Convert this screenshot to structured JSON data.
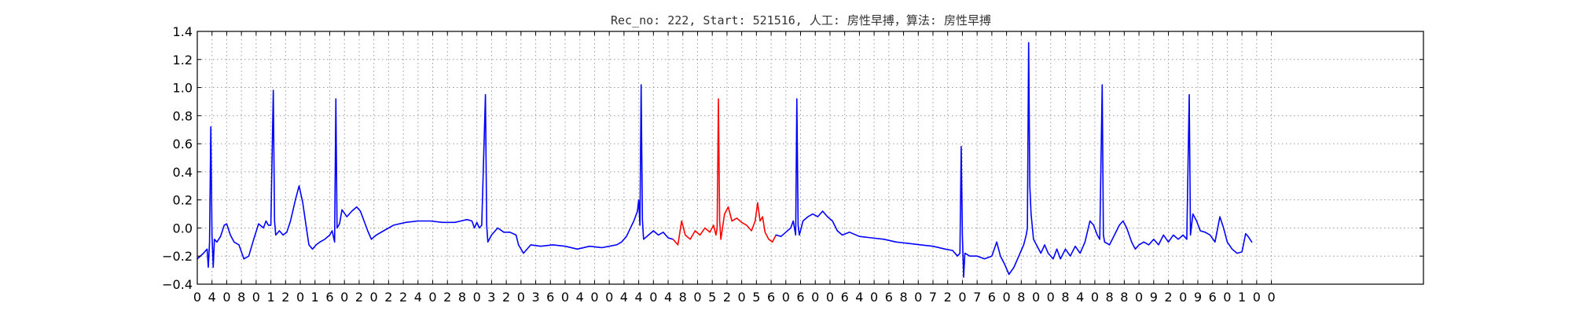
{
  "chart_data": {
    "type": "line",
    "title": "Rec_no: 222, Start: 521516, 人工: 房性早搏，算法: 房性早搏",
    "xlabel": "",
    "ylabel": "",
    "xlim": [
      0,
      1000
    ],
    "ylim": [
      -0.4,
      1.4
    ],
    "grid": true,
    "colors": {
      "normal": "#0000ff",
      "highlight": "#ff0000"
    },
    "yticks": [
      -0.4,
      -0.2,
      0.0,
      0.2,
      0.4,
      0.6,
      0.8,
      1.0,
      1.2,
      1.4
    ],
    "ytick_labels": [
      "−0.4",
      "−0.2",
      "0.0",
      "0.2",
      "0.4",
      "0.6",
      "0.8",
      "1.0",
      "1.2",
      "1.4"
    ],
    "xticks": [
      0,
      12,
      24,
      36,
      48,
      60,
      72,
      84,
      96,
      108,
      120,
      132,
      144,
      156,
      168,
      180,
      192,
      204,
      216,
      228,
      240,
      252,
      264,
      276,
      288,
      300,
      312,
      324,
      336,
      348,
      360,
      372,
      384,
      396,
      408,
      420,
      432,
      444,
      456,
      468,
      480,
      492,
      504,
      516,
      528,
      540,
      552,
      564,
      576,
      588,
      600,
      612,
      624,
      636,
      648,
      660,
      672,
      684,
      696,
      708,
      720,
      732,
      744,
      756,
      768,
      780,
      792,
      804,
      816,
      828,
      840,
      852,
      864,
      876
    ],
    "xtick_labels": [
      "0",
      "4",
      "0",
      "8",
      "0",
      "1",
      "2",
      "0",
      "1",
      "6",
      "0",
      "2",
      "0",
      "2",
      "2",
      "4",
      "0",
      "2",
      "8",
      "0",
      "3",
      "2",
      "0",
      "3",
      "6",
      "0",
      "4",
      "0",
      "0",
      "4",
      "4",
      "0",
      "4",
      "8",
      "0",
      "5",
      "2",
      "0",
      "5",
      "6",
      "0",
      "6",
      "0",
      "0",
      "6",
      "4",
      "0",
      "6",
      "8",
      "0",
      "7",
      "2",
      "0",
      "7",
      "6",
      "0",
      "8",
      "0",
      "0",
      "8",
      "4",
      "0",
      "8",
      "8",
      "0",
      "9",
      "2",
      "0",
      "9",
      "6",
      "0",
      "1",
      "0",
      "0"
    ],
    "series": [
      {
        "color": "#0000ff",
        "points": [
          [
            0,
            -0.22
          ],
          [
            5,
            -0.18
          ],
          [
            8,
            -0.15
          ],
          [
            9,
            -0.28
          ],
          [
            10,
            -0.1
          ],
          [
            11,
            0.72
          ],
          [
            12,
            -0.05
          ],
          [
            13,
            -0.28
          ],
          [
            14,
            -0.08
          ],
          [
            16,
            -0.1
          ],
          [
            19,
            -0.06
          ],
          [
            22,
            0.02
          ],
          [
            24,
            0.03
          ],
          [
            27,
            -0.05
          ],
          [
            30,
            -0.1
          ],
          [
            34,
            -0.12
          ],
          [
            38,
            -0.22
          ],
          [
            42,
            -0.2
          ],
          [
            46,
            -0.08
          ],
          [
            50,
            0.03
          ],
          [
            54,
            0.0
          ],
          [
            56,
            0.05
          ],
          [
            58,
            0.02
          ],
          [
            60,
            0.02
          ],
          [
            62,
            0.98
          ],
          [
            63,
            0.05
          ],
          [
            64,
            -0.05
          ],
          [
            67,
            -0.02
          ],
          [
            70,
            -0.05
          ],
          [
            73,
            -0.03
          ],
          [
            76,
            0.05
          ],
          [
            80,
            0.2
          ],
          [
            83,
            0.3
          ],
          [
            86,
            0.18
          ],
          [
            89,
            0.0
          ],
          [
            91,
            -0.12
          ],
          [
            94,
            -0.15
          ],
          [
            97,
            -0.12
          ],
          [
            100,
            -0.1
          ],
          [
            104,
            -0.08
          ],
          [
            108,
            -0.05
          ],
          [
            110,
            -0.02
          ],
          [
            112,
            -0.1
          ],
          [
            113,
            0.92
          ],
          [
            114,
            0.0
          ],
          [
            116,
            0.03
          ],
          [
            118,
            0.13
          ],
          [
            122,
            0.08
          ],
          [
            126,
            0.12
          ],
          [
            130,
            0.15
          ],
          [
            133,
            0.12
          ],
          [
            136,
            0.05
          ],
          [
            139,
            -0.02
          ],
          [
            142,
            -0.08
          ],
          [
            146,
            -0.05
          ],
          [
            152,
            -0.02
          ],
          [
            160,
            0.02
          ],
          [
            170,
            0.04
          ],
          [
            180,
            0.05
          ],
          [
            190,
            0.05
          ],
          [
            200,
            0.04
          ],
          [
            210,
            0.04
          ],
          [
            215,
            0.05
          ],
          [
            220,
            0.06
          ],
          [
            224,
            0.05
          ],
          [
            226,
            0.0
          ],
          [
            228,
            0.04
          ],
          [
            230,
            0.0
          ],
          [
            232,
            0.02
          ],
          [
            235,
            0.95
          ],
          [
            236,
            0.02
          ],
          [
            237,
            -0.1
          ],
          [
            240,
            -0.05
          ],
          [
            245,
            0.0
          ],
          [
            250,
            -0.03
          ],
          [
            255,
            -0.03
          ],
          [
            260,
            -0.05
          ],
          [
            262,
            -0.12
          ],
          [
            266,
            -0.18
          ],
          [
            272,
            -0.12
          ],
          [
            280,
            -0.13
          ],
          [
            290,
            -0.12
          ],
          [
            300,
            -0.13
          ],
          [
            310,
            -0.15
          ],
          [
            320,
            -0.13
          ],
          [
            330,
            -0.14
          ],
          [
            336,
            -0.13
          ],
          [
            342,
            -0.12
          ],
          [
            346,
            -0.1
          ],
          [
            350,
            -0.06
          ],
          [
            356,
            0.05
          ],
          [
            359,
            0.12
          ],
          [
            360,
            0.2
          ],
          [
            361,
            0.02
          ],
          [
            362,
            1.02
          ],
          [
            363,
            0.06
          ],
          [
            364,
            -0.08
          ],
          [
            368,
            -0.05
          ],
          [
            372,
            -0.02
          ],
          [
            376,
            -0.05
          ],
          [
            380,
            -0.03
          ],
          [
            384,
            -0.07
          ],
          [
            388,
            -0.08
          ]
        ]
      },
      {
        "color": "#ff0000",
        "points": [
          [
            388,
            -0.08
          ],
          [
            392,
            -0.12
          ],
          [
            395,
            0.05
          ],
          [
            398,
            -0.05
          ],
          [
            402,
            -0.08
          ],
          [
            406,
            -0.02
          ],
          [
            410,
            -0.05
          ],
          [
            414,
            0.0
          ],
          [
            418,
            -0.03
          ],
          [
            421,
            0.02
          ],
          [
            423,
            -0.05
          ],
          [
            424,
            0.0
          ],
          [
            425,
            0.92
          ],
          [
            426,
            0.05
          ],
          [
            427,
            -0.08
          ],
          [
            430,
            0.1
          ],
          [
            433,
            0.15
          ],
          [
            436,
            0.05
          ],
          [
            440,
            0.07
          ],
          [
            444,
            0.04
          ],
          [
            448,
            0.02
          ],
          [
            452,
            -0.02
          ],
          [
            455,
            0.05
          ],
          [
            457,
            0.18
          ],
          [
            459,
            0.05
          ],
          [
            461,
            0.08
          ],
          [
            463,
            -0.03
          ],
          [
            466,
            -0.08
          ],
          [
            469,
            -0.1
          ],
          [
            472,
            -0.05
          ]
        ]
      },
      {
        "color": "#0000ff",
        "points": [
          [
            472,
            -0.05
          ],
          [
            476,
            -0.06
          ],
          [
            480,
            -0.03
          ],
          [
            484,
            0.0
          ],
          [
            486,
            0.05
          ],
          [
            488,
            -0.05
          ],
          [
            489,
            0.92
          ],
          [
            490,
            0.02
          ],
          [
            491,
            -0.05
          ],
          [
            494,
            0.05
          ],
          [
            498,
            0.08
          ],
          [
            502,
            0.1
          ],
          [
            506,
            0.08
          ],
          [
            510,
            0.12
          ],
          [
            514,
            0.08
          ],
          [
            518,
            0.05
          ],
          [
            522,
            -0.02
          ],
          [
            526,
            -0.05
          ],
          [
            532,
            -0.03
          ],
          [
            540,
            -0.06
          ],
          [
            550,
            -0.07
          ],
          [
            560,
            -0.08
          ],
          [
            570,
            -0.1
          ],
          [
            580,
            -0.11
          ],
          [
            590,
            -0.12
          ],
          [
            600,
            -0.13
          ],
          [
            610,
            -0.15
          ],
          [
            616,
            -0.16
          ],
          [
            620,
            -0.2
          ],
          [
            622,
            -0.18
          ],
          [
            623,
            0.58
          ],
          [
            624,
            -0.05
          ],
          [
            625,
            -0.35
          ],
          [
            626,
            -0.18
          ],
          [
            630,
            -0.2
          ],
          [
            636,
            -0.2
          ],
          [
            642,
            -0.22
          ],
          [
            648,
            -0.2
          ],
          [
            652,
            -0.1
          ],
          [
            655,
            -0.2
          ],
          [
            658,
            -0.25
          ],
          [
            662,
            -0.33
          ],
          [
            666,
            -0.28
          ],
          [
            670,
            -0.2
          ],
          [
            674,
            -0.12
          ],
          [
            676,
            -0.05
          ],
          [
            677,
            0.0
          ],
          [
            678,
            1.32
          ],
          [
            679,
            0.3
          ],
          [
            680,
            0.1
          ],
          [
            682,
            -0.08
          ],
          [
            685,
            -0.13
          ],
          [
            688,
            -0.18
          ],
          [
            691,
            -0.12
          ],
          [
            694,
            -0.18
          ],
          [
            698,
            -0.22
          ],
          [
            701,
            -0.15
          ],
          [
            704,
            -0.22
          ],
          [
            708,
            -0.15
          ],
          [
            712,
            -0.2
          ],
          [
            716,
            -0.13
          ],
          [
            720,
            -0.18
          ],
          [
            724,
            -0.1
          ],
          [
            728,
            0.05
          ],
          [
            731,
            0.02
          ],
          [
            734,
            -0.05
          ],
          [
            736,
            -0.08
          ],
          [
            738,
            1.02
          ],
          [
            739,
            -0.05
          ],
          [
            740,
            -0.1
          ],
          [
            744,
            -0.12
          ],
          [
            748,
            -0.05
          ],
          [
            752,
            0.02
          ],
          [
            755,
            0.05
          ],
          [
            758,
            0.0
          ],
          [
            762,
            -0.1
          ],
          [
            765,
            -0.15
          ],
          [
            768,
            -0.12
          ],
          [
            772,
            -0.1
          ],
          [
            776,
            -0.12
          ],
          [
            780,
            -0.08
          ],
          [
            784,
            -0.12
          ],
          [
            788,
            -0.05
          ],
          [
            792,
            -0.1
          ],
          [
            796,
            -0.05
          ],
          [
            800,
            -0.08
          ],
          [
            804,
            -0.05
          ],
          [
            807,
            -0.08
          ],
          [
            809,
            0.95
          ],
          [
            810,
            -0.05
          ],
          [
            812,
            0.1
          ],
          [
            815,
            0.05
          ],
          [
            818,
            -0.02
          ],
          [
            822,
            -0.03
          ],
          [
            826,
            -0.05
          ],
          [
            830,
            -0.1
          ],
          [
            834,
            0.08
          ],
          [
            837,
            0.0
          ],
          [
            840,
            -0.1
          ],
          [
            844,
            -0.15
          ],
          [
            848,
            -0.18
          ],
          [
            852,
            -0.17
          ],
          [
            855,
            -0.04
          ],
          [
            857,
            -0.06
          ],
          [
            860,
            -0.1
          ]
        ]
      }
    ]
  }
}
